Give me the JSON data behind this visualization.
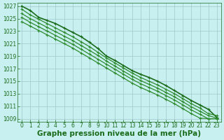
{
  "x": [
    0,
    1,
    2,
    3,
    4,
    5,
    6,
    7,
    8,
    9,
    10,
    11,
    12,
    13,
    14,
    15,
    16,
    17,
    18,
    19,
    20,
    21,
    22,
    23
  ],
  "lines": [
    {
      "y": [
        1027.0,
        1026.3,
        1025.2,
        1024.7,
        1024.2,
        1023.5,
        1022.8,
        1022.1,
        1021.2,
        1020.2,
        1019.0,
        1018.3,
        1017.5,
        1016.7,
        1016.1,
        1015.6,
        1015.0,
        1014.3,
        1013.5,
        1012.7,
        1011.9,
        1011.2,
        1010.5,
        1009.2
      ],
      "marker": "+",
      "color": "#1a6b1a",
      "linewidth": 1.2
    },
    {
      "y": [
        1026.5,
        1025.6,
        1024.9,
        1024.2,
        1023.5,
        1022.8,
        1022.1,
        1021.3,
        1020.5,
        1019.6,
        1018.7,
        1017.9,
        1017.1,
        1016.3,
        1015.6,
        1015.0,
        1014.4,
        1013.7,
        1013.0,
        1012.2,
        1011.4,
        1010.7,
        1009.8,
        1009.5
      ],
      "marker": "+",
      "color": "#2d8b2d",
      "linewidth": 0.9
    },
    {
      "y": [
        1025.8,
        1025.0,
        1024.3,
        1023.6,
        1022.9,
        1022.2,
        1021.5,
        1020.7,
        1019.9,
        1019.1,
        1018.2,
        1017.4,
        1016.6,
        1015.8,
        1015.1,
        1014.5,
        1013.9,
        1013.2,
        1012.5,
        1011.7,
        1010.9,
        1010.2,
        1009.5,
        1009.1
      ],
      "marker": "+",
      "color": "#2d8b2d",
      "linewidth": 0.9
    },
    {
      "y": [
        1025.2,
        1024.4,
        1023.7,
        1023.0,
        1022.3,
        1021.6,
        1020.9,
        1020.1,
        1019.3,
        1018.5,
        1017.7,
        1016.9,
        1016.1,
        1015.3,
        1014.6,
        1014.0,
        1013.4,
        1012.7,
        1012.0,
        1011.2,
        1010.4,
        1009.7,
        1009.0,
        1009.0
      ],
      "marker": "+",
      "color": "#2d8b2d",
      "linewidth": 0.9
    },
    {
      "y": [
        1024.5,
        1023.8,
        1023.1,
        1022.4,
        1021.7,
        1021.0,
        1020.3,
        1019.5,
        1018.7,
        1017.9,
        1017.1,
        1016.3,
        1015.5,
        1014.7,
        1014.0,
        1013.4,
        1012.8,
        1012.1,
        1011.4,
        1010.6,
        1009.8,
        1009.1,
        1009.0,
        1009.0
      ],
      "marker": "+",
      "color": "#2d8b2d",
      "linewidth": 0.9
    }
  ],
  "ylim": [
    1008.5,
    1027.5
  ],
  "xlim": [
    -0.5,
    23.5
  ],
  "yticks": [
    1009,
    1011,
    1013,
    1015,
    1017,
    1019,
    1021,
    1023,
    1025,
    1027
  ],
  "xticks": [
    0,
    1,
    2,
    3,
    4,
    5,
    6,
    7,
    8,
    9,
    10,
    11,
    12,
    13,
    14,
    15,
    16,
    17,
    18,
    19,
    20,
    21,
    22,
    23
  ],
  "xlabel": "Graphe pression niveau de la mer (hPa)",
  "bg_color": "#c8f0f0",
  "grid_color": "#a0c8c8",
  "line_color": "#1a6b1a",
  "tick_color": "#1a6b1a",
  "label_color": "#1a6b1a",
  "tick_fontsize": 5.5,
  "xlabel_fontsize": 7.5
}
